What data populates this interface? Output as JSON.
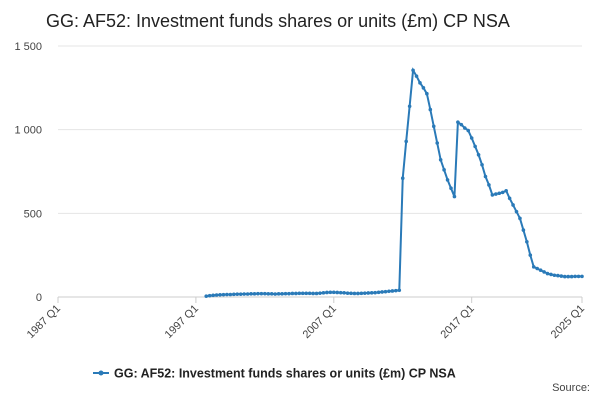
{
  "chart_data": {
    "type": "line",
    "title": "GG: AF52: Investment funds shares or units (£m) CP NSA",
    "source_label": "Source:",
    "x": [
      1997.75,
      1998,
      1998.25,
      1998.5,
      1998.75,
      1999,
      1999.25,
      1999.5,
      1999.75,
      2000,
      2000.25,
      2000.5,
      2000.75,
      2001,
      2001.25,
      2001.5,
      2001.75,
      2002,
      2002.25,
      2002.5,
      2002.75,
      2003,
      2003.25,
      2003.5,
      2003.75,
      2004,
      2004.25,
      2004.5,
      2004.75,
      2005,
      2005.25,
      2005.5,
      2005.75,
      2006,
      2006.25,
      2006.5,
      2006.75,
      2007,
      2007.25,
      2007.5,
      2007.75,
      2008,
      2008.25,
      2008.5,
      2008.75,
      2009,
      2009.25,
      2009.5,
      2009.75,
      2010,
      2010.25,
      2010.5,
      2010.75,
      2011,
      2011.25,
      2011.5,
      2011.75,
      2012,
      2012.25,
      2012.5,
      2012.75,
      2013,
      2013.25,
      2013.5,
      2013.75,
      2014,
      2014.25,
      2014.5,
      2014.75,
      2015,
      2015.25,
      2015.5,
      2015.75,
      2016,
      2016.25,
      2016.5,
      2016.75,
      2017,
      2017.25,
      2017.5,
      2017.75,
      2018,
      2018.25,
      2018.5,
      2018.75,
      2019,
      2019.25,
      2019.5,
      2019.75,
      2020,
      2020.25,
      2020.5,
      2020.75,
      2021,
      2021.25,
      2021.5,
      2021.75,
      2022,
      2022.25,
      2022.5,
      2022.75,
      2023,
      2023.25,
      2023.5,
      2023.75,
      2024,
      2024.25,
      2024.5,
      2024.75,
      2025
    ],
    "series": [
      {
        "name": "GG: AF52: Investment funds shares or units (£m) CP NSA",
        "color": "#2a7ab8",
        "values": [
          5,
          8,
          10,
          12,
          13,
          14,
          15,
          15,
          16,
          17,
          17,
          18,
          18,
          19,
          19,
          20,
          20,
          20,
          19,
          19,
          18,
          19,
          19,
          20,
          20,
          21,
          21,
          22,
          22,
          22,
          22,
          21,
          21,
          23,
          25,
          27,
          28,
          28,
          27,
          26,
          25,
          23,
          22,
          21,
          21,
          22,
          23,
          24,
          25,
          26,
          28,
          30,
          32,
          34,
          36,
          38,
          40,
          710,
          930,
          1140,
          1355,
          1320,
          1280,
          1250,
          1215,
          1120,
          1020,
          920,
          820,
          760,
          700,
          650,
          600,
          1045,
          1030,
          1010,
          995,
          950,
          900,
          850,
          790,
          720,
          670,
          610,
          615,
          620,
          625,
          635,
          590,
          550,
          510,
          470,
          400,
          330,
          250,
          180,
          170,
          160,
          150,
          140,
          135,
          130,
          128,
          125,
          122,
          122,
          122,
          123,
          123,
          123
        ]
      }
    ],
    "xlim": [
      1987,
      2025
    ],
    "xticks": [
      {
        "value": 1987,
        "label": "1987 Q1"
      },
      {
        "value": 1997,
        "label": "1997 Q1"
      },
      {
        "value": 2007,
        "label": "2007 Q1"
      },
      {
        "value": 2017,
        "label": "2017 Q1"
      },
      {
        "value": 2025,
        "label": "2025 Q1"
      }
    ],
    "ylim": [
      0,
      1500
    ],
    "yticks": [
      0,
      500,
      {
        "value": 1000,
        "label": "1 000"
      },
      {
        "value": 1500,
        "label": "1 500"
      }
    ],
    "grid": true
  }
}
